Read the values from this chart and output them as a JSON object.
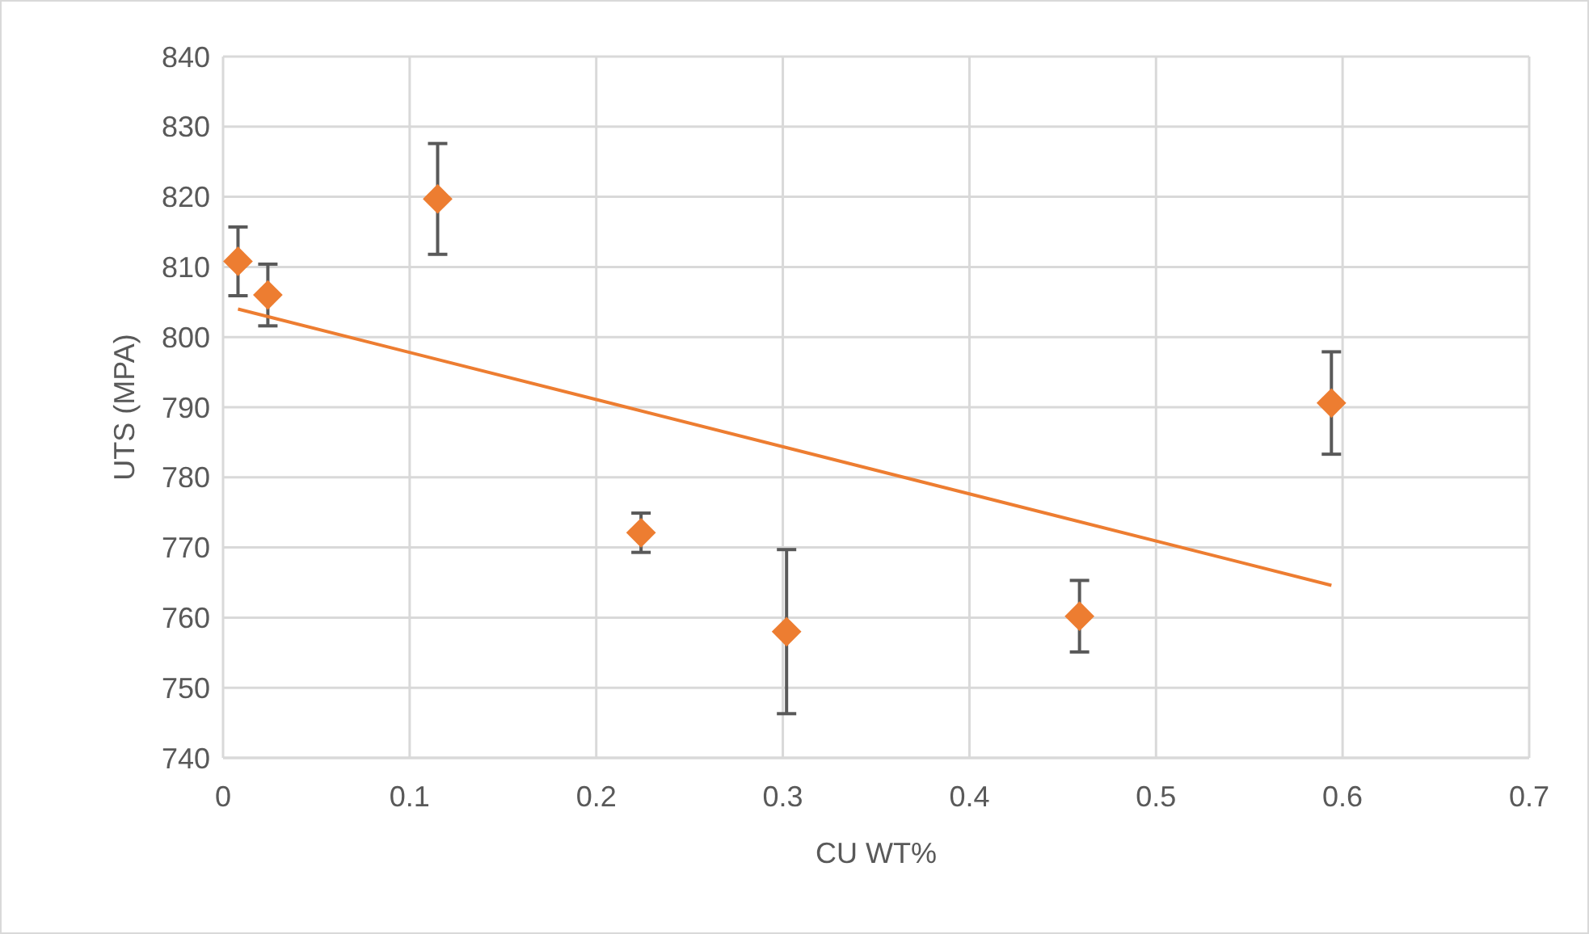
{
  "chart_data": {
    "type": "scatter",
    "xlabel": "CU WT%",
    "ylabel": "UTS (MPA)",
    "xlim": [
      0,
      0.7
    ],
    "xticks": [
      0,
      0.1,
      0.2,
      0.3,
      0.4,
      0.5,
      0.6,
      0.7
    ],
    "ylim": [
      740,
      840
    ],
    "yticks": [
      740,
      750,
      760,
      770,
      780,
      790,
      800,
      810,
      820,
      830,
      840
    ],
    "grid": true,
    "series": [
      {
        "type": "scatter",
        "color": "#ed7d31",
        "marker": "diamond",
        "x": [
          0.008,
          0.024,
          0.115,
          0.224,
          0.302,
          0.459,
          0.594
        ],
        "values": [
          810.8,
          806.0,
          819.7,
          772.1,
          758.0,
          760.2,
          790.6
        ],
        "errors": [
          4.9,
          4.4,
          7.9,
          2.8,
          11.7,
          5.1,
          7.3
        ]
      },
      {
        "type": "line",
        "color": "#ed7d31",
        "marker": "none",
        "line_style": "solid",
        "x": [
          0.008,
          0.594
        ],
        "values": [
          804.0,
          764.6
        ]
      }
    ]
  }
}
